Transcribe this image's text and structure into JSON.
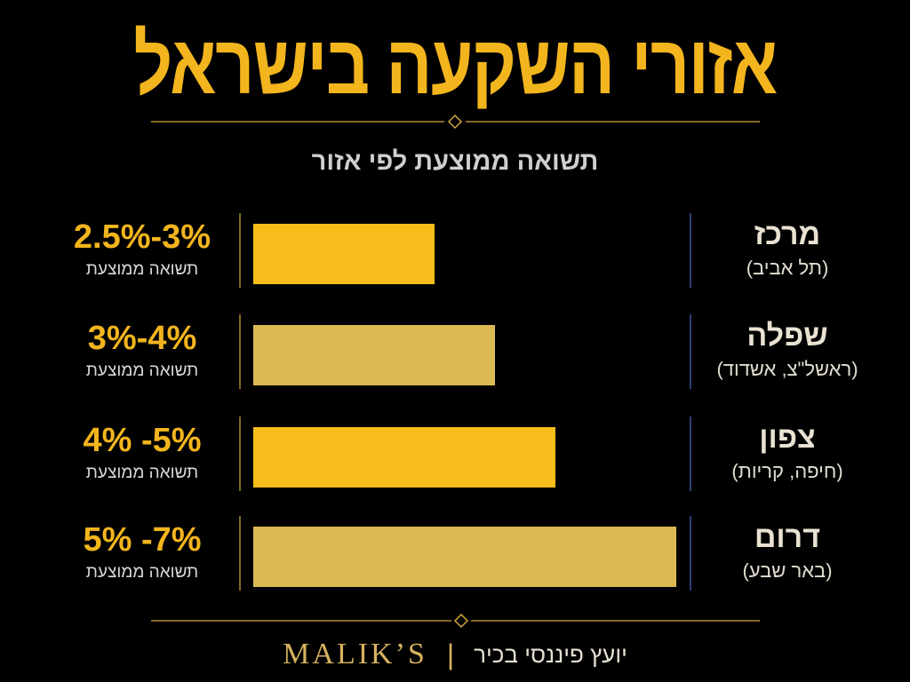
{
  "title": "אזורי השקעה בישראל",
  "subtitle": "תשואה ממוצעת לפי אזור",
  "footer": {
    "brand": "MALIK’S",
    "separator": "|",
    "tagline": "יועץ פיננסי בכיר"
  },
  "colors": {
    "background": "#000000",
    "accent_gold": "#f3b51d",
    "bar_bright": "#f7bd1a",
    "bar_muted": "#dcba52",
    "divider_blue": "#2c3e78"
  },
  "chart_data": {
    "type": "bar",
    "orientation": "horizontal",
    "title": "אזורי השקעה בישראל",
    "subtitle": "תשואה ממוצעת לפי אזור",
    "unit": "%",
    "xlim": [
      0,
      7
    ],
    "categories": [
      {
        "region": "מרכז",
        "cities": "(תל אביב)",
        "range_label": "2.5%-3%",
        "avg_label": "תשואה ממוצעת",
        "min": 2.5,
        "max": 3,
        "bar_style": "bright"
      },
      {
        "region": "שפלה",
        "cities": "(ראשל\"צ, אשדוד)",
        "range_label": "3%-4%",
        "avg_label": "תשואה ממוצעת",
        "min": 3,
        "max": 4,
        "bar_style": "muted"
      },
      {
        "region": "צפון",
        "cities": "(חיפה, קריות)",
        "range_label": "4% -5%",
        "avg_label": "תשואה ממוצעת",
        "min": 4,
        "max": 5,
        "bar_style": "bright"
      },
      {
        "region": "דרום",
        "cities": "(באר שבע)",
        "range_label": "5% -7%",
        "avg_label": "תשואה ממוצעת",
        "min": 5,
        "max": 7,
        "bar_style": "muted"
      }
    ]
  }
}
